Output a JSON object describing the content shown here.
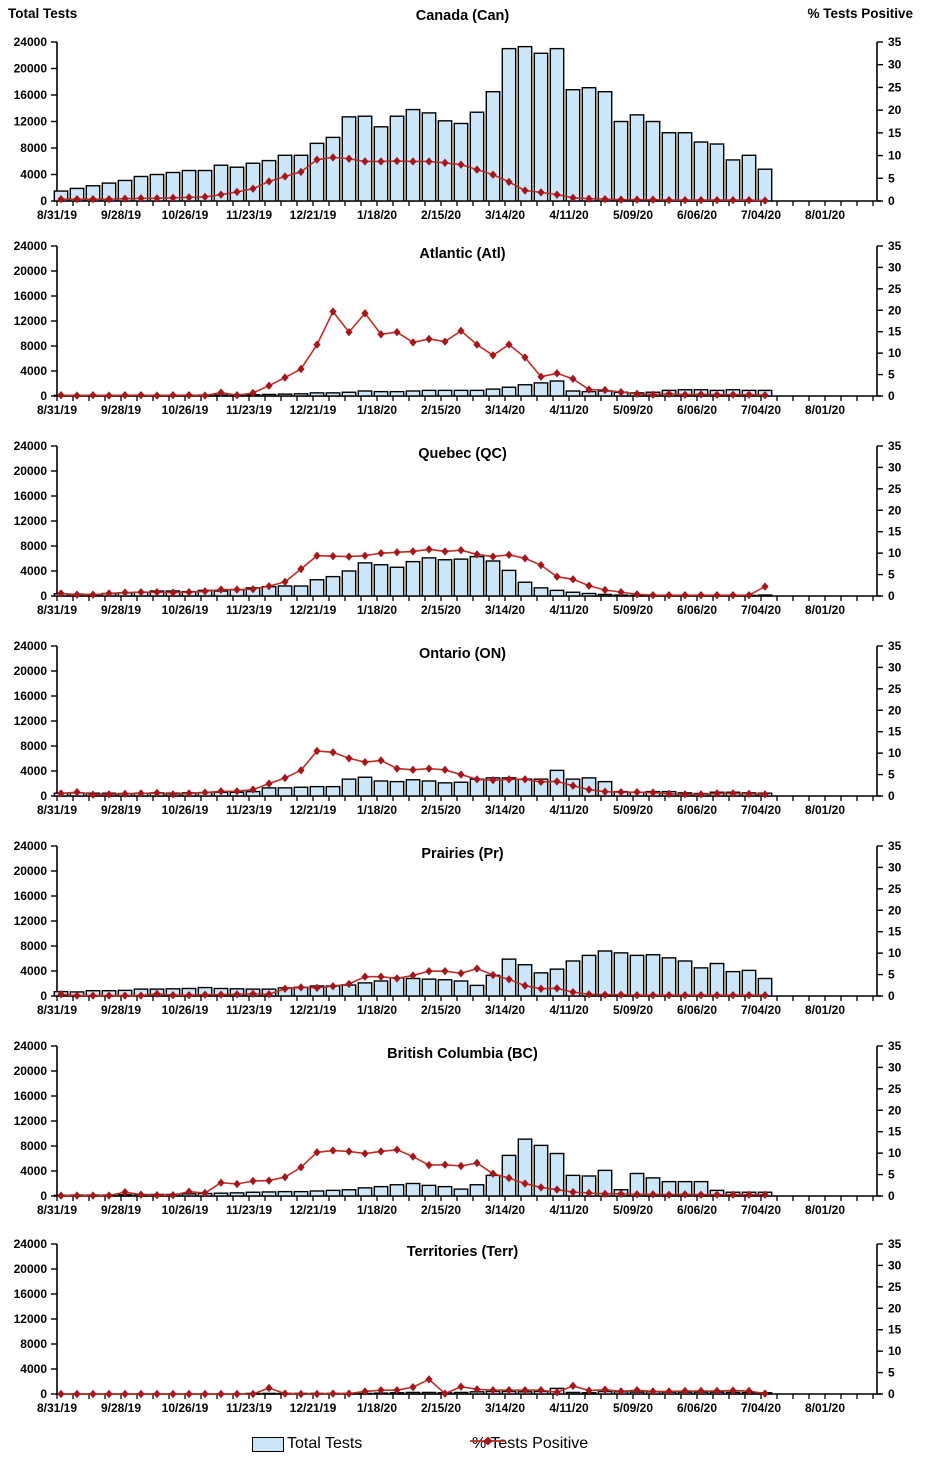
{
  "page": {
    "left_axis_title": "Total Tests",
    "right_axis_title": "% Tests Positive"
  },
  "legend": {
    "bars_label": "Total Tests",
    "line_label": "% Tests Positive"
  },
  "colors": {
    "bar_fill": "#cde6f7",
    "bar_stroke": "#000000",
    "line": "#bf2c25",
    "marker": "#a6151c",
    "axis": "#000000"
  },
  "axes": {
    "left_label": "Total Tests",
    "right_label": "% Tests Positive",
    "left_max": 24000,
    "right_max": 35,
    "left_ticks": [
      0,
      4000,
      8000,
      12000,
      16000,
      20000,
      24000
    ],
    "right_ticks": [
      0,
      5,
      10,
      15,
      20,
      25,
      30,
      35
    ],
    "x_tick_labels": [
      "8/31/19",
      "9/28/19",
      "10/26/19",
      "11/23/19",
      "12/21/19",
      "1/18/20",
      "2/15/20",
      "3/14/20",
      "4/11/20",
      "5/09/20",
      "6/06/20",
      "7/04/20",
      "8/01/20"
    ],
    "weeks_per_label": 4,
    "total_weeks": 52,
    "data_weeks": 45,
    "grid": "off",
    "legend_position": "bottom-center"
  },
  "chart_data": [
    {
      "type": "bar+line",
      "title": "Canada (Can)",
      "x_start": "8/31/19",
      "x_end": "7/04/20",
      "total_tests": [
        1500,
        1900,
        2300,
        2700,
        3100,
        3700,
        4000,
        4300,
        4600,
        4600,
        5400,
        5100,
        5700,
        6100,
        6900,
        6900,
        8700,
        9600,
        12700,
        12800,
        11200,
        12800,
        13800,
        13300,
        12100,
        11700,
        13400,
        16500,
        23000,
        23300,
        22300,
        23000,
        16800,
        17100,
        16500,
        12000,
        13000,
        12000,
        10300,
        10300,
        8900,
        8600,
        6200,
        6900,
        4800
      ],
      "pct_positive": [
        0.4,
        0.4,
        0.4,
        0.4,
        0.5,
        0.6,
        0.6,
        0.7,
        0.8,
        0.9,
        1.4,
        2.0,
        2.7,
        4.3,
        5.4,
        6.4,
        9.1,
        9.6,
        9.3,
        8.7,
        8.7,
        8.8,
        8.7,
        8.7,
        8.4,
        8.0,
        6.9,
        5.8,
        4.2,
        2.3,
        1.9,
        1.4,
        0.7,
        0.5,
        0.4,
        0.3,
        0.3,
        0.3,
        0.2,
        0.2,
        0.2,
        0.2,
        0.2,
        0.2,
        0.1
      ]
    },
    {
      "type": "bar+line",
      "title": "Atlantic (Atl)",
      "x_start": "8/31/19",
      "x_end": "7/04/20",
      "total_tests": [
        100,
        100,
        100,
        100,
        100,
        100,
        120,
        120,
        120,
        150,
        150,
        150,
        200,
        250,
        300,
        350,
        500,
        500,
        600,
        800,
        700,
        700,
        800,
        900,
        900,
        900,
        900,
        1100,
        1400,
        1800,
        2100,
        2400,
        800,
        700,
        800,
        600,
        500,
        600,
        900,
        1000,
        1000,
        900,
        1000,
        900,
        900
      ],
      "pct_positive": [
        0.2,
        0.1,
        0.2,
        0.1,
        0.2,
        0.2,
        0.1,
        0.2,
        0.2,
        0.1,
        0.8,
        0.2,
        0.7,
        2.4,
        4.3,
        6.3,
        12.0,
        19.7,
        14.9,
        19.3,
        14.4,
        14.9,
        12.5,
        13.3,
        12.7,
        15.2,
        12.0,
        9.5,
        12.0,
        9.0,
        4.5,
        5.3,
        4.0,
        1.5,
        1.4,
        0.9,
        0.5,
        0.3,
        0.5,
        0.3,
        0.4,
        0.3,
        0.3,
        0.3,
        0.2
      ]
    },
    {
      "type": "bar+line",
      "title": "Quebec (QC)",
      "x_start": "8/31/19",
      "x_end": "7/04/20",
      "total_tests": [
        350,
        300,
        250,
        400,
        500,
        600,
        800,
        800,
        700,
        900,
        800,
        1000,
        1300,
        1500,
        1600,
        1600,
        2600,
        3100,
        4000,
        5300,
        5000,
        4600,
        5500,
        6100,
        5800,
        5900,
        6300,
        5600,
        4100,
        2200,
        1300,
        900,
        600,
        400,
        250,
        150,
        100,
        100,
        100,
        100,
        100,
        100,
        100,
        100,
        150
      ],
      "pct_positive": [
        0.6,
        0.3,
        0.3,
        0.6,
        0.8,
        0.9,
        0.9,
        0.8,
        0.9,
        1.1,
        1.5,
        1.5,
        1.6,
        2.3,
        3.3,
        6.3,
        9.4,
        9.3,
        9.2,
        9.4,
        10.0,
        10.2,
        10.4,
        10.9,
        10.4,
        10.7,
        9.7,
        9.2,
        9.6,
        8.8,
        7.2,
        4.5,
        3.9,
        2.4,
        1.4,
        0.9,
        0.4,
        0.2,
        0.2,
        0.2,
        0.2,
        0.2,
        0.2,
        0.2,
        2.2
      ]
    },
    {
      "type": "bar+line",
      "title": "Ontario (ON)",
      "x_start": "8/31/19",
      "x_end": "7/04/20",
      "total_tests": [
        450,
        500,
        450,
        450,
        400,
        450,
        500,
        450,
        500,
        550,
        600,
        600,
        700,
        1300,
        1300,
        1400,
        1500,
        1500,
        2700,
        3000,
        2400,
        2300,
        2600,
        2400,
        2100,
        2200,
        2700,
        2900,
        2900,
        2700,
        2700,
        4100,
        2700,
        2900,
        2300,
        700,
        600,
        700,
        700,
        500,
        400,
        600,
        600,
        500,
        450
      ],
      "pct_positive": [
        0.6,
        0.9,
        0.3,
        0.4,
        0.5,
        0.6,
        0.7,
        0.4,
        0.6,
        0.8,
        1.1,
        1.1,
        1.5,
        2.9,
        4.2,
        6.0,
        10.5,
        10.2,
        8.8,
        7.9,
        8.3,
        6.4,
        6.1,
        6.4,
        6.1,
        5.0,
        3.9,
        3.7,
        3.9,
        3.9,
        3.3,
        3.4,
        2.4,
        1.5,
        1.0,
        0.9,
        0.9,
        0.8,
        0.5,
        0.4,
        0.4,
        0.6,
        0.6,
        0.5,
        0.4
      ]
    },
    {
      "type": "bar+line",
      "title": "Prairies (Pr)",
      "x_start": "8/31/19",
      "x_end": "7/04/20",
      "total_tests": [
        700,
        650,
        850,
        850,
        900,
        1100,
        1100,
        1150,
        1200,
        1350,
        1200,
        1150,
        1100,
        1100,
        1300,
        1400,
        1600,
        1600,
        1750,
        2100,
        2400,
        2900,
        2800,
        2700,
        2600,
        2400,
        1700,
        3300,
        5900,
        5000,
        3700,
        4300,
        5600,
        6500,
        7200,
        6900,
        6500,
        6600,
        6100,
        5600,
        4500,
        5200,
        3900,
        4100,
        2800
      ],
      "pct_positive": [
        0.4,
        0.1,
        0.1,
        0.1,
        0.1,
        0.1,
        0.5,
        0.2,
        0.2,
        0.3,
        0.3,
        0.4,
        0.5,
        0.4,
        1.7,
        2.0,
        1.9,
        2.3,
        2.8,
        4.5,
        4.5,
        4.1,
        4.8,
        5.8,
        5.8,
        5.3,
        6.4,
        4.9,
        3.9,
        2.4,
        1.7,
        1.8,
        0.9,
        0.4,
        0.3,
        0.3,
        0.2,
        0.2,
        0.2,
        0.2,
        0.2,
        0.2,
        0.2,
        0.2,
        0.2
      ]
    },
    {
      "type": "bar+line",
      "title": "British Columbia (BC)",
      "x_start": "8/31/19",
      "x_end": "7/04/20",
      "total_tests": [
        100,
        150,
        150,
        150,
        200,
        250,
        250,
        250,
        350,
        400,
        450,
        500,
        600,
        650,
        700,
        700,
        800,
        900,
        1000,
        1300,
        1500,
        1800,
        2000,
        1700,
        1500,
        1100,
        1800,
        3300,
        6500,
        9100,
        8100,
        6800,
        3300,
        3200,
        4100,
        1000,
        3600,
        2900,
        2300,
        2300,
        2300,
        900,
        600,
        600,
        600
      ],
      "pct_positive": [
        0.1,
        0.1,
        0.1,
        0.1,
        0.9,
        0.3,
        0.2,
        0.2,
        1.0,
        0.7,
        3.1,
        2.8,
        3.5,
        3.6,
        4.4,
        6.7,
        10.2,
        10.6,
        10.4,
        9.9,
        10.4,
        10.8,
        9.2,
        7.2,
        7.3,
        7.0,
        7.7,
        5.2,
        4.2,
        2.9,
        2.0,
        1.5,
        0.9,
        0.7,
        0.5,
        0.5,
        0.4,
        0.4,
        0.3,
        0.4,
        0.3,
        0.3,
        0.3,
        0.3,
        0.3
      ]
    },
    {
      "type": "bar+line",
      "title": "Territories (Terr)",
      "x_start": "8/31/19",
      "x_end": "7/04/20",
      "total_tests": [
        0,
        0,
        0,
        0,
        0,
        0,
        0,
        0,
        0,
        0,
        0,
        0,
        50,
        80,
        50,
        50,
        50,
        50,
        80,
        100,
        150,
        200,
        250,
        250,
        200,
        250,
        350,
        400,
        400,
        350,
        400,
        900,
        250,
        200,
        400,
        350,
        300,
        350,
        300,
        300,
        300,
        300,
        250,
        250,
        200
      ],
      "pct_positive": [
        0,
        0,
        0,
        0,
        0,
        0,
        0,
        0,
        0,
        0,
        0,
        0,
        0,
        1.4,
        0.1,
        0,
        0,
        0.1,
        0.1,
        0.6,
        0.9,
        0.9,
        1.6,
        3.4,
        0.1,
        1.7,
        1.1,
        0.9,
        0.9,
        0.9,
        0.9,
        0.4,
        1.9,
        0.8,
        1.0,
        0.6,
        0.9,
        0.6,
        0.6,
        0.7,
        0.7,
        0.7,
        0.8,
        0.7,
        0.1
      ]
    }
  ]
}
